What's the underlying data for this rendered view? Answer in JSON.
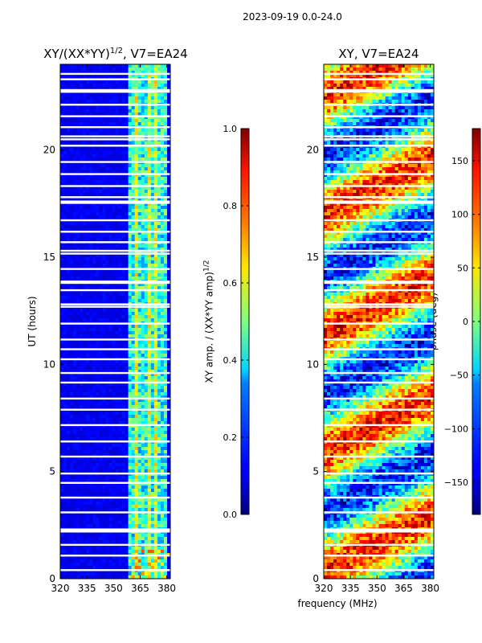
{
  "figure": {
    "suptitle": "2023-09-19 0.0-24.0",
    "xlabel": "frequency (MHz)"
  },
  "chart_data": [
    {
      "type": "heatmap",
      "title": "XY/(XX*YY)^1/2, V7=EA24",
      "title_main": "XY/(XX*YY)",
      "title_sup": "1/2",
      "title_tail": ", V7=EA24",
      "ylabel": "UT (hours)",
      "xlim": [
        320,
        382
      ],
      "ylim": [
        0,
        24
      ],
      "xticks": [
        320,
        335,
        350,
        365,
        380
      ],
      "yticks": [
        0,
        5,
        10,
        15,
        20
      ],
      "colorbar": {
        "label": "XY amp. / (XX*YY amp)^1/2",
        "label_main": "XY amp. / (XX*YY amp)",
        "label_sup": "1/2",
        "range": [
          0.0,
          1.0
        ],
        "ticks": [
          "0.0",
          "0.2",
          "0.4",
          "0.6",
          "0.8",
          "1.0"
        ],
        "colormap": "jet"
      }
    },
    {
      "type": "heatmap",
      "title": "XY, V7=EA24",
      "ylabel": "",
      "xlim": [
        320,
        382
      ],
      "ylim": [
        0,
        24
      ],
      "xticks": [
        320,
        335,
        350,
        365,
        380
      ],
      "yticks": [
        0,
        5,
        10,
        15,
        20
      ],
      "colorbar": {
        "label": "phase (deg)",
        "range": [
          -180,
          180
        ],
        "ticks": [
          "150",
          "100",
          "50",
          "0",
          "−50",
          "−100",
          "−150"
        ],
        "colormap": "jet"
      }
    }
  ],
  "colors": {
    "jet_low": "#00007f",
    "jet_mid": "#7fff7f",
    "jet_high": "#7f0000"
  }
}
